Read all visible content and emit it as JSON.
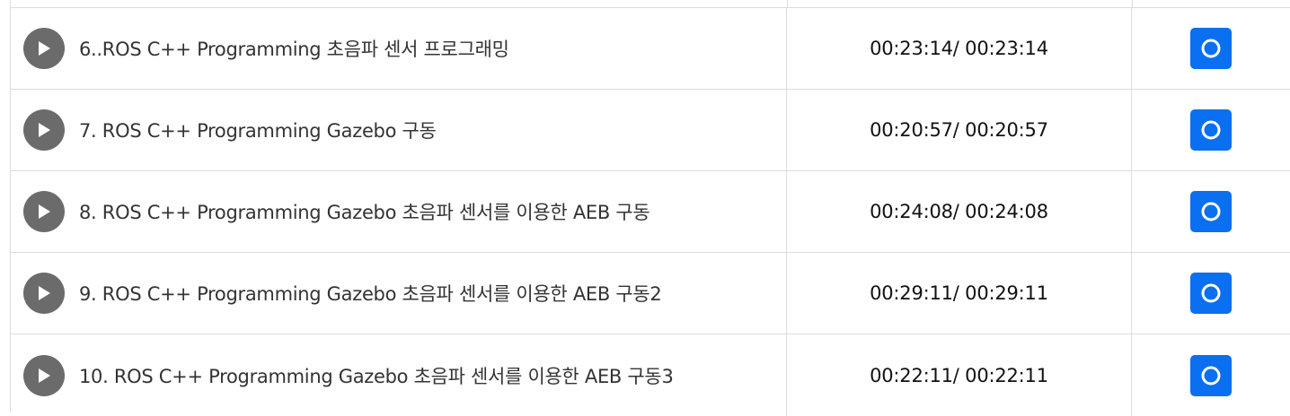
{
  "lectures": [
    {
      "title": "6..ROS C++ Programming 초음파 센서 프로그래밍",
      "time": "00:23:14/ 00:23:14"
    },
    {
      "title": "7. ROS C++ Programming Gazebo 구동",
      "time": "00:20:57/ 00:20:57"
    },
    {
      "title": "8. ROS C++ Programming Gazebo 초음파 센서를 이용한 AEB 구동",
      "time": "00:24:08/ 00:24:08"
    },
    {
      "title": "9. ROS C++ Programming Gazebo 초음파 센서를 이용한 AEB 구동2",
      "time": "00:29:11/ 00:29:11"
    },
    {
      "title": "10. ROS C++ Programming Gazebo 초음파 센서를 이용한 AEB 구동3",
      "time": "00:22:11/ 00:22:11"
    }
  ],
  "icons": {
    "play": "play-icon",
    "status": "circle-o-icon"
  },
  "colors": {
    "play_button": "#6b6b6b",
    "status_button": "#0a6ff0",
    "border": "#dcdcdc"
  }
}
